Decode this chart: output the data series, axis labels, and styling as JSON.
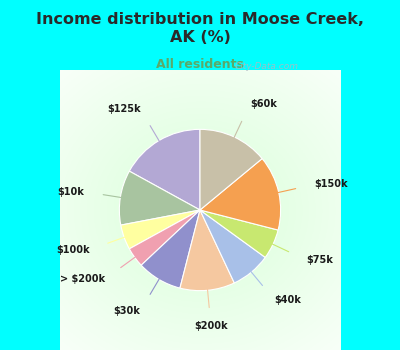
{
  "title": "Income distribution in Moose Creek,\nAK (%)",
  "subtitle": "All residents",
  "title_color": "#2a2a2a",
  "subtitle_color": "#5aaa6a",
  "bg_color": "#00ffff",
  "chart_bg_inner": "#f0faf4",
  "watermark": "City-Data.com",
  "labels": [
    "$125k",
    "$10k",
    "$100k",
    "> $200k",
    "$30k",
    "$200k",
    "$40k",
    "$75k",
    "$150k",
    "$60k"
  ],
  "values": [
    17,
    11,
    5,
    4,
    9,
    11,
    8,
    6,
    15,
    14
  ],
  "colors": [
    "#b3a8d4",
    "#a8c4a0",
    "#ffffa0",
    "#f0a0b0",
    "#9090cc",
    "#f5c8a0",
    "#a8c0e8",
    "#c8e870",
    "#f5a050",
    "#c8c0a8"
  ],
  "startangle": 90,
  "figsize": [
    4.0,
    3.5
  ],
  "dpi": 100
}
